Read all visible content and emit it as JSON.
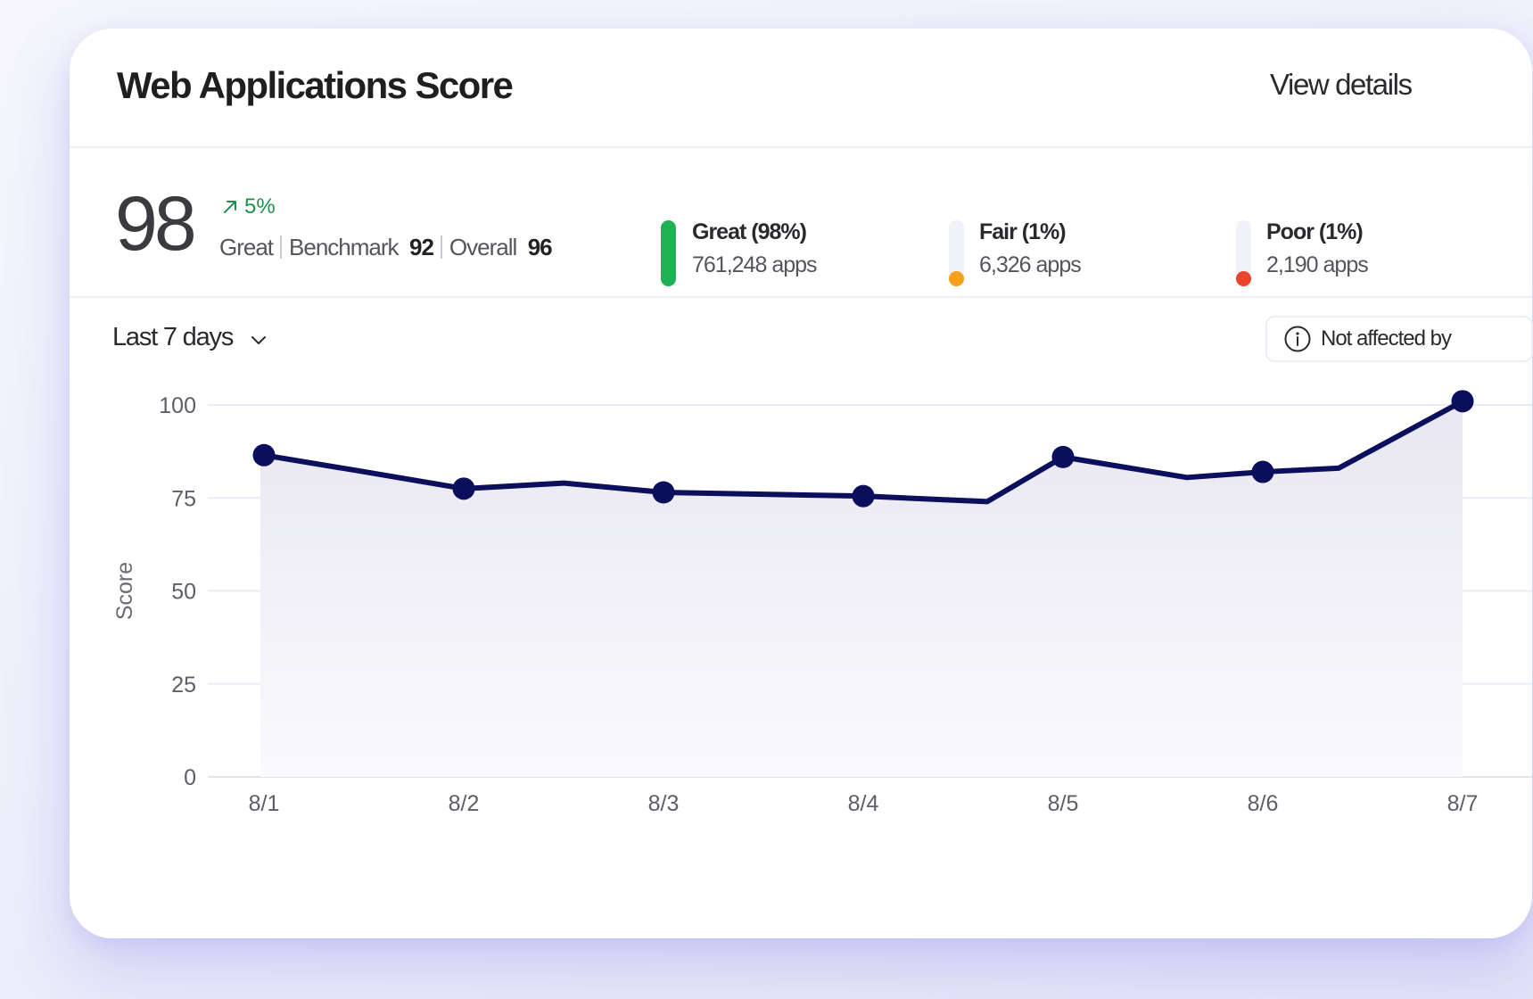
{
  "header": {
    "title": "Web Applications Score",
    "view_details": "View details"
  },
  "summary": {
    "score": "98",
    "trend": "5%",
    "rating": "Great",
    "benchmark_label": "Benchmark",
    "benchmark_value": "92",
    "overall_label": "Overall",
    "overall_value": "96"
  },
  "legend": [
    {
      "name": "Great (98%)",
      "count": "761,248 apps",
      "color": "#1fb154"
    },
    {
      "name": "Fair (1%)",
      "count": "6,326 apps",
      "color": "#f6a01a"
    },
    {
      "name": "Poor (1%)",
      "count": "2,190 apps",
      "color": "#e8452c"
    }
  ],
  "controls": {
    "range": "Last 7 days",
    "notice": "Not affected by"
  },
  "icons": {
    "trend": "arrow-up-right-icon",
    "dropdown": "chevron-down-icon",
    "notice": "info-icon"
  },
  "chart_data": {
    "type": "area",
    "ylabel": "Score",
    "ylim": [
      0,
      100
    ],
    "yticks": [
      0,
      25,
      50,
      75,
      100
    ],
    "categories": [
      "8/1",
      "8/2",
      "8/3",
      "8/4",
      "8/5",
      "8/6",
      "8/7"
    ],
    "series": [
      {
        "color": "#0b0f5c",
        "x": [
          1,
          1.45,
          2,
          2.5,
          3,
          4,
          4.62,
          5,
          5.62,
          6,
          6.38,
          7
        ],
        "values": [
          86.5,
          82.5,
          77.5,
          79,
          76.5,
          75.5,
          74,
          86,
          80.5,
          82,
          83,
          101
        ],
        "markers": [
          true,
          false,
          true,
          false,
          true,
          true,
          false,
          true,
          false,
          true,
          false,
          true
        ]
      }
    ],
    "grid": true,
    "legend": "none"
  }
}
